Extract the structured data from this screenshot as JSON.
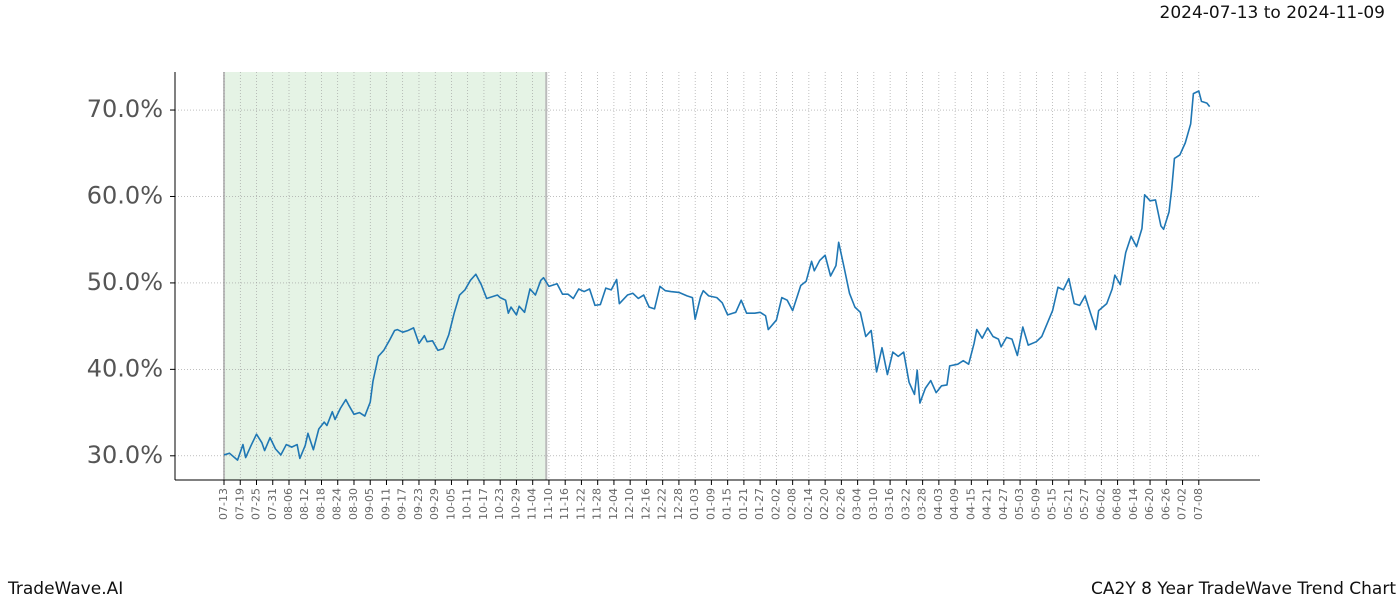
{
  "chart_data": {
    "type": "line",
    "title": "CA2Y 8 Year TradeWave Trend Chart",
    "subtitle": "2024-07-13 to 2024-11-09",
    "footer_left": "TradeWave.AI",
    "shade_x": [
      0,
      119
    ],
    "grid": true,
    "xlim": [
      -18.1,
      382.6
    ],
    "ylim": [
      27.2,
      74.4
    ],
    "yticks": [
      {
        "value": 30,
        "label": "30.0%"
      },
      {
        "value": 40,
        "label": "40.0%"
      },
      {
        "value": 50,
        "label": "50.0%"
      },
      {
        "value": 60,
        "label": "60.0%"
      },
      {
        "value": 70,
        "label": "70.0%"
      }
    ],
    "xticks": [
      {
        "value": 0,
        "label": "07-13"
      },
      {
        "value": 6,
        "label": "07-19"
      },
      {
        "value": 12,
        "label": "07-25"
      },
      {
        "value": 18,
        "label": "07-31"
      },
      {
        "value": 24,
        "label": "08-06"
      },
      {
        "value": 30,
        "label": "08-12"
      },
      {
        "value": 36,
        "label": "08-18"
      },
      {
        "value": 42,
        "label": "08-24"
      },
      {
        "value": 48,
        "label": "08-30"
      },
      {
        "value": 54,
        "label": "09-05"
      },
      {
        "value": 60,
        "label": "09-11"
      },
      {
        "value": 66,
        "label": "09-17"
      },
      {
        "value": 72,
        "label": "09-23"
      },
      {
        "value": 78,
        "label": "09-29"
      },
      {
        "value": 84,
        "label": "10-05"
      },
      {
        "value": 90,
        "label": "10-11"
      },
      {
        "value": 96,
        "label": "10-17"
      },
      {
        "value": 102,
        "label": "10-23"
      },
      {
        "value": 108,
        "label": "10-29"
      },
      {
        "value": 114,
        "label": "11-04"
      },
      {
        "value": 120,
        "label": "11-10"
      },
      {
        "value": 126,
        "label": "11-16"
      },
      {
        "value": 132,
        "label": "11-22"
      },
      {
        "value": 138,
        "label": "11-28"
      },
      {
        "value": 144,
        "label": "12-04"
      },
      {
        "value": 150,
        "label": "12-10"
      },
      {
        "value": 156,
        "label": "12-16"
      },
      {
        "value": 162,
        "label": "12-22"
      },
      {
        "value": 168,
        "label": "12-28"
      },
      {
        "value": 174,
        "label": "01-03"
      },
      {
        "value": 180,
        "label": "01-09"
      },
      {
        "value": 186,
        "label": "01-15"
      },
      {
        "value": 192,
        "label": "01-21"
      },
      {
        "value": 198,
        "label": "01-27"
      },
      {
        "value": 204,
        "label": "02-02"
      },
      {
        "value": 210,
        "label": "02-08"
      },
      {
        "value": 216,
        "label": "02-14"
      },
      {
        "value": 222,
        "label": "02-20"
      },
      {
        "value": 228,
        "label": "02-26"
      },
      {
        "value": 234,
        "label": "03-04"
      },
      {
        "value": 240,
        "label": "03-10"
      },
      {
        "value": 246,
        "label": "03-16"
      },
      {
        "value": 252,
        "label": "03-22"
      },
      {
        "value": 258,
        "label": "03-28"
      },
      {
        "value": 264,
        "label": "04-03"
      },
      {
        "value": 270,
        "label": "04-09"
      },
      {
        "value": 276,
        "label": "04-15"
      },
      {
        "value": 282,
        "label": "04-21"
      },
      {
        "value": 288,
        "label": "04-27"
      },
      {
        "value": 294,
        "label": "05-03"
      },
      {
        "value": 300,
        "label": "05-09"
      },
      {
        "value": 306,
        "label": "05-15"
      },
      {
        "value": 312,
        "label": "05-21"
      },
      {
        "value": 318,
        "label": "05-27"
      },
      {
        "value": 324,
        "label": "06-02"
      },
      {
        "value": 330,
        "label": "06-08"
      },
      {
        "value": 336,
        "label": "06-14"
      },
      {
        "value": 342,
        "label": "06-20"
      },
      {
        "value": 348,
        "label": "06-26"
      },
      {
        "value": 354,
        "label": "07-02"
      },
      {
        "value": 360,
        "label": "07-08"
      }
    ],
    "series": [
      {
        "color": "#1f77b4",
        "x": [
          0,
          2,
          5,
          7,
          8,
          10,
          12,
          14,
          15,
          17,
          19,
          21,
          23,
          25,
          27,
          28,
          30,
          31,
          33,
          35,
          37,
          38,
          40,
          41,
          43,
          45,
          46,
          48,
          50,
          52,
          54,
          55,
          57,
          59,
          61,
          63,
          64,
          66,
          68,
          70,
          72,
          74,
          75,
          77,
          79,
          81,
          83,
          85,
          87,
          89,
          91,
          93,
          95,
          97,
          99,
          101,
          102,
          104,
          105,
          106,
          108,
          109,
          111,
          113,
          115,
          117,
          118,
          120,
          123,
          125,
          127,
          129,
          131,
          133,
          135,
          137,
          139,
          141,
          143,
          145,
          146,
          149,
          151,
          153,
          155,
          157,
          159,
          161,
          163,
          165,
          168,
          171,
          173,
          174,
          176,
          177,
          179,
          182,
          184,
          186,
          188,
          189,
          191,
          193,
          196,
          198,
          200,
          201,
          204,
          206,
          208,
          210,
          213,
          215,
          217,
          218,
          220,
          222,
          224,
          226,
          227,
          229,
          231,
          233,
          235,
          237,
          239,
          241,
          243,
          245,
          247,
          249,
          251,
          253,
          255,
          256,
          257,
          259,
          261,
          263,
          265,
          267,
          268,
          271,
          273,
          275,
          277,
          278,
          280,
          282,
          284,
          286,
          287,
          289,
          291,
          293,
          295,
          297,
          300,
          302,
          304,
          306,
          308,
          310,
          312,
          314,
          316,
          318,
          320,
          322,
          323,
          326,
          328,
          329,
          331,
          333,
          335,
          337,
          339,
          340,
          342,
          344,
          346,
          347,
          349,
          350,
          351,
          353,
          355,
          357,
          358,
          360,
          361,
          363,
          364
        ],
        "values": [
          30.1,
          30.3,
          29.5,
          31.3,
          29.8,
          31.2,
          32.5,
          31.5,
          30.6,
          32.1,
          30.8,
          30.1,
          31.3,
          31.0,
          31.3,
          29.7,
          31.2,
          32.6,
          30.7,
          33.1,
          33.9,
          33.5,
          35.1,
          34.2,
          35.5,
          36.5,
          35.9,
          34.8,
          35.0,
          34.6,
          36.2,
          38.6,
          41.5,
          42.2,
          43.3,
          44.5,
          44.6,
          44.3,
          44.5,
          44.8,
          43.0,
          43.9,
          43.2,
          43.3,
          42.2,
          42.4,
          44.0,
          46.5,
          48.6,
          49.2,
          50.3,
          51.0,
          49.8,
          48.2,
          48.4,
          48.6,
          48.3,
          48.0,
          46.5,
          47.2,
          46.3,
          47.3,
          46.6,
          49.3,
          48.6,
          50.3,
          50.6,
          49.6,
          49.9,
          48.7,
          48.7,
          48.2,
          49.3,
          49.0,
          49.3,
          47.4,
          47.5,
          49.4,
          49.2,
          50.4,
          47.6,
          48.6,
          48.8,
          48.2,
          48.6,
          47.2,
          47.0,
          49.6,
          49.1,
          49.0,
          48.9,
          48.5,
          48.3,
          45.8,
          48.4,
          49.1,
          48.5,
          48.3,
          47.7,
          46.3,
          46.5,
          46.6,
          48.0,
          46.5,
          46.5,
          46.6,
          46.2,
          44.6,
          45.7,
          48.3,
          48.0,
          46.8,
          49.7,
          50.2,
          52.5,
          51.4,
          52.6,
          53.2,
          50.8,
          52.0,
          54.7,
          51.8,
          48.8,
          47.2,
          46.6,
          43.8,
          44.5,
          39.7,
          42.5,
          39.4,
          42.0,
          41.5,
          42.0,
          38.5,
          37.1,
          39.9,
          36.1,
          37.8,
          38.7,
          37.3,
          38.1,
          38.2,
          40.4,
          40.6,
          41.0,
          40.6,
          43.0,
          44.6,
          43.6,
          44.8,
          43.8,
          43.5,
          42.6,
          43.7,
          43.5,
          41.6,
          44.9,
          42.8,
          43.2,
          43.8,
          45.3,
          46.8,
          49.5,
          49.2,
          50.5,
          47.6,
          47.4,
          48.5,
          46.5,
          44.6,
          46.8,
          47.6,
          49.3,
          50.9,
          49.8,
          53.5,
          55.4,
          54.2,
          56.3,
          60.2,
          59.5,
          59.6,
          56.6,
          56.2,
          58.2,
          60.9,
          64.4,
          64.8,
          66.2,
          68.4,
          71.9,
          72.2,
          71.0,
          70.8,
          70.4
        ]
      }
    ]
  }
}
